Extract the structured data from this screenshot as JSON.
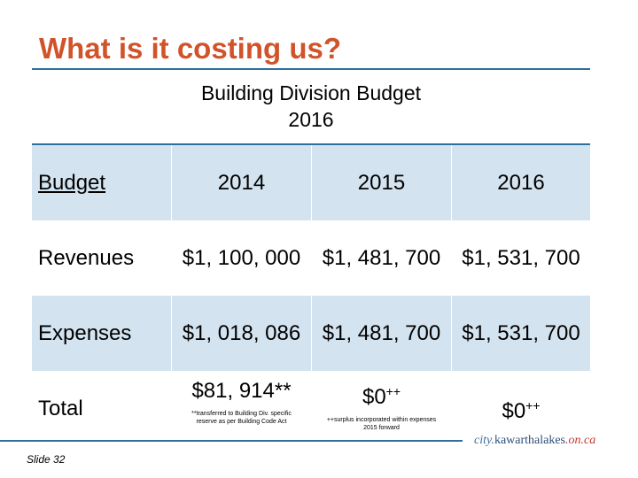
{
  "slide": {
    "title": "What is it costing us?",
    "subtitle_line1": "Building Division Budget",
    "subtitle_line2": "2016",
    "slide_number": "Slide 32"
  },
  "table": {
    "headers": [
      "Budget",
      "2014",
      "2015",
      "2016"
    ],
    "rows": [
      {
        "label": "Revenues",
        "values": [
          "$1, 100, 000",
          "$1, 481, 700",
          "$1, 531, 700"
        ]
      },
      {
        "label": "Expenses",
        "values": [
          "$1, 018, 086",
          "$1, 481, 700",
          "$1, 531, 700"
        ]
      }
    ],
    "total": {
      "label": "Total",
      "v2014": "$81, 914",
      "v2014_mark": "**",
      "v2014_note": "**transferred to Building Div. specific reserve as per Building Code Act",
      "v2015": "$0",
      "v2015_mark": "++",
      "v2015_note": "++surplus incorporated within expenses 2015 forward",
      "v2016": "$0",
      "v2016_mark": "++"
    }
  },
  "logo": {
    "prefix": "city.",
    "name": "kawarthalakes",
    "suffix": ".on.ca"
  },
  "colors": {
    "title": "#d0532a",
    "rule": "#2e6f9e",
    "shade": "#d3e3ef"
  }
}
